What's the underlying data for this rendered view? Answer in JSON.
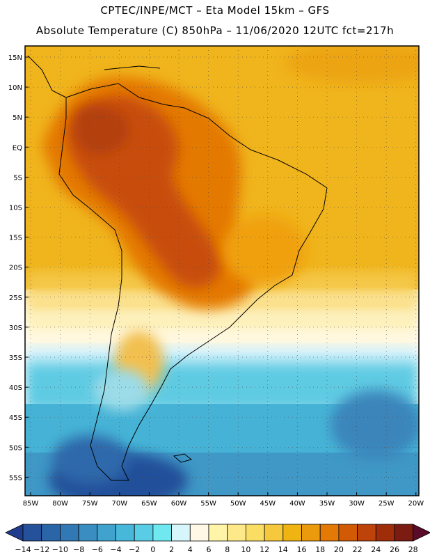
{
  "header": {
    "line1": "CPTEC/INPE/MCT –  Eta Model 15km – GFS",
    "line2": "Absolute Temperature (C) 850hPa – 11/06/2020 12UTC fct=217h"
  },
  "map": {
    "lat_labels": [
      "15N",
      "10N",
      "5N",
      "EQ",
      "5S",
      "10S",
      "15S",
      "20S",
      "25S",
      "30S",
      "35S",
      "40S",
      "45S",
      "50S",
      "55S"
    ],
    "lon_labels": [
      "85W",
      "80W",
      "75W",
      "70W",
      "65W",
      "60W",
      "55W",
      "50W",
      "45W",
      "40W",
      "35W",
      "30W",
      "25W",
      "20W"
    ]
  },
  "colorbar": {
    "labels": [
      "-14",
      "-12",
      "-10",
      "-8",
      "-6",
      "-4",
      "-2",
      "0",
      "2",
      "4",
      "6",
      "8",
      "10",
      "12",
      "14",
      "16",
      "18",
      "20",
      "22",
      "24",
      "26",
      "28"
    ],
    "colors": [
      "#1f3c8f",
      "#24519a",
      "#2a65a8",
      "#3178b4",
      "#3a8dc0",
      "#40a3cd",
      "#47b8da",
      "#58cde5",
      "#6fe8ef",
      "#d6f6fb",
      "#fff8e6",
      "#fff4a8",
      "#fde989",
      "#fade64",
      "#f6c93d",
      "#f0b412",
      "#ea9a0c",
      "#e47906",
      "#d35a05",
      "#bd430a",
      "#a02d0a",
      "#7c1b12",
      "#5a0b2a"
    ]
  }
}
